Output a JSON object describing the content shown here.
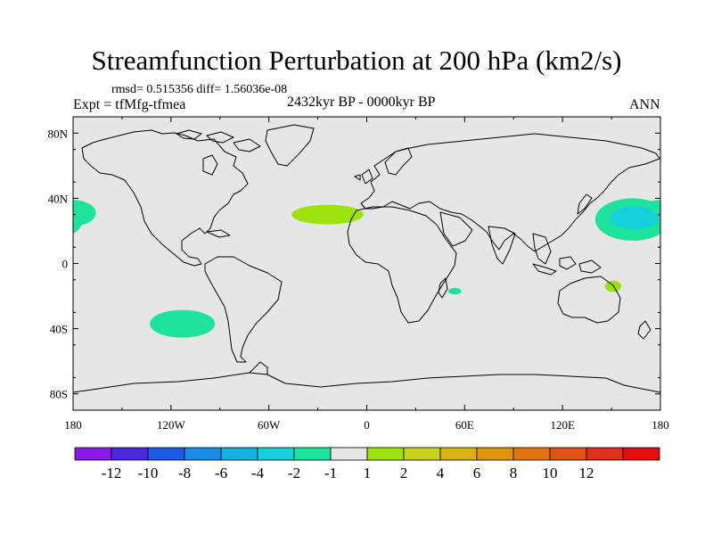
{
  "chart_data": {
    "type": "heatmap",
    "title": "Streamfunction Perturbation at 200 hPa (km2/s)",
    "stats_line": "rmsd= 0.515356 diff= 1.56036e-08",
    "experiment": "Expt = tfMfg-tfmea",
    "period": "2432kyr BP - 0000kyr BP",
    "season": "ANN",
    "xlim": [
      -180,
      180
    ],
    "ylim": [
      -90,
      90
    ],
    "x_ticks": [
      {
        "lon": -180,
        "label": "180"
      },
      {
        "lon": -120,
        "label": "120W"
      },
      {
        "lon": -60,
        "label": "60W"
      },
      {
        "lon": 0,
        "label": "0"
      },
      {
        "lon": 60,
        "label": "60E"
      },
      {
        "lon": 120,
        "label": "120E"
      },
      {
        "lon": 180,
        "label": "180"
      }
    ],
    "y_ticks": [
      {
        "lat": 80,
        "label": "80N"
      },
      {
        "lat": 40,
        "label": "40N"
      },
      {
        "lat": 0,
        "label": "0"
      },
      {
        "lat": -40,
        "label": "40S"
      },
      {
        "lat": -80,
        "label": "80S"
      }
    ],
    "background_color": "#e6e6e6",
    "features": [
      {
        "name": "anomaly-north-pacific-east",
        "lon": -180,
        "lat": 31,
        "rx": 14,
        "ry": 8,
        "bin": -1.5,
        "color": "#1ee39c"
      },
      {
        "name": "anomaly-south-pacific",
        "lon": -113,
        "lat": -37,
        "rx": 20,
        "ry": 8.5,
        "bin": -1.5,
        "color": "#1ee39c"
      },
      {
        "name": "anomaly-north-atlantic",
        "lon": -24,
        "lat": 30,
        "rx": 22,
        "ry": 6,
        "bin": 1.5,
        "color": "#9de10d"
      },
      {
        "name": "anomaly-madagascar",
        "lon": 54,
        "lat": -17,
        "rx": 4,
        "ry": 2,
        "bin": -1.5,
        "color": "#1ee39c"
      },
      {
        "name": "anomaly-north-pacific-west-outer",
        "lon": 163,
        "lat": 27,
        "rx": 23,
        "ry": 13,
        "bin": -1.5,
        "color": "#1ee39c"
      },
      {
        "name": "anomaly-north-pacific-west-core",
        "lon": 164,
        "lat": 28,
        "rx": 15,
        "ry": 7,
        "bin": -3,
        "color": "#15d0da"
      },
      {
        "name": "anomaly-coral-sea",
        "lon": 151,
        "lat": -14,
        "rx": 5,
        "ry": 3.5,
        "bin": 1.5,
        "color": "#9de10d"
      }
    ],
    "colorbar": {
      "colors": [
        "#8a1ae6",
        "#4b28e0",
        "#1a5ce6",
        "#1a8be6",
        "#14b0e0",
        "#15d0da",
        "#1ee39c",
        "#e6e6e6",
        "#9de10d",
        "#c6d31c",
        "#d9b211",
        "#e0950f",
        "#e07410",
        "#e05214",
        "#e0301a",
        "#e60d0d"
      ],
      "labels": [
        "-12",
        "-10",
        "-8",
        "-6",
        "-4",
        "-2",
        "-1",
        "1",
        "2",
        "4",
        "6",
        "8",
        "10",
        "12"
      ]
    }
  }
}
